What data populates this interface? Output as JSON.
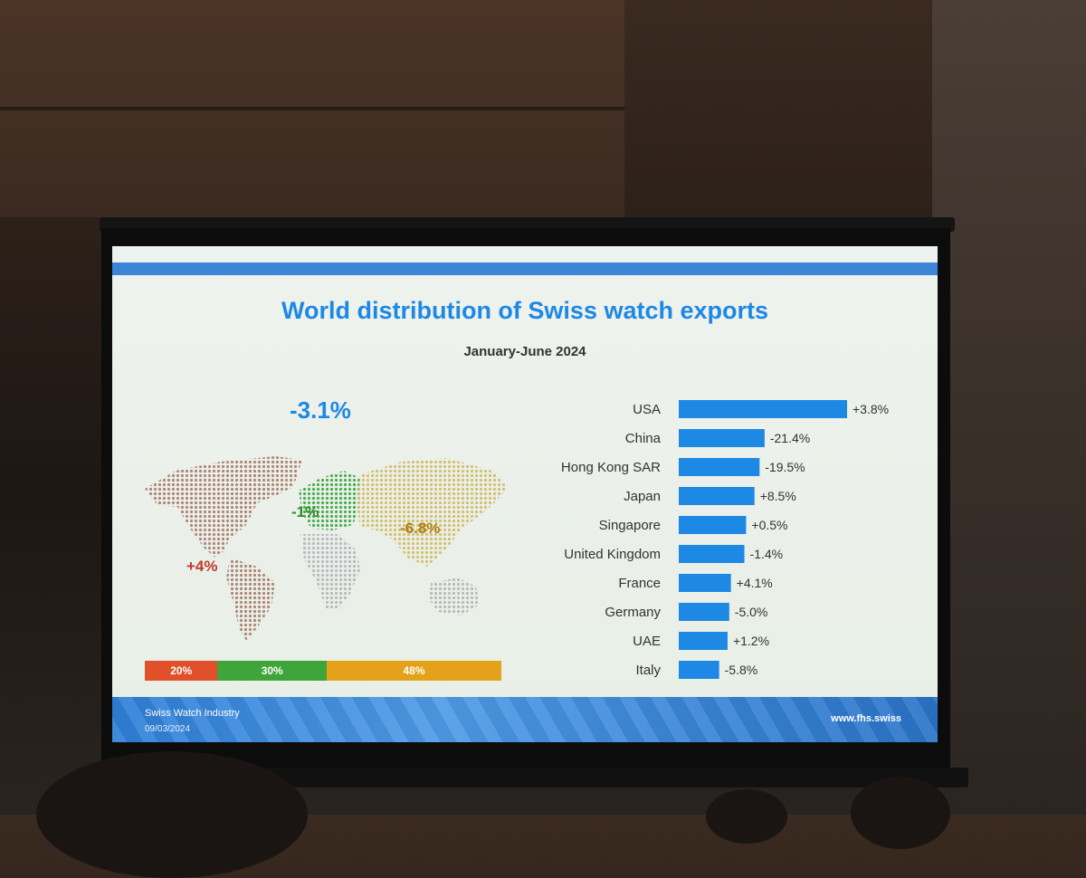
{
  "slide": {
    "title": "World distribution of Swiss watch exports",
    "subtitle": "January-June 2024",
    "world_change": "-3.1%",
    "regions": [
      {
        "name": "America",
        "change": "+4%",
        "color": "#c0392b"
      },
      {
        "name": "Europe",
        "change": "-1%",
        "color": "#2e8b2e"
      },
      {
        "name": "Asia",
        "change": "-6.8%",
        "color": "#b07d10"
      }
    ],
    "shares": [
      {
        "label": "20%",
        "value": 20,
        "color": "#e0502a"
      },
      {
        "label": "30%",
        "value": 30,
        "color": "#3fa43a"
      },
      {
        "label": "48%",
        "value": 48,
        "color": "#e3a21a"
      }
    ],
    "footer": {
      "org": "Swiss Watch Industry",
      "date": "09/03/2024",
      "url": "www.fhs.swiss"
    }
  },
  "chart_data": {
    "type": "bar",
    "orientation": "horizontal",
    "categories": [
      "USA",
      "China",
      "Hong Kong SAR",
      "Japan",
      "Singapore",
      "United Kingdom",
      "France",
      "Germany",
      "UAE",
      "Italy"
    ],
    "values": [
      100,
      51,
      48,
      45,
      40,
      39,
      31,
      30,
      29,
      24
    ],
    "data_labels": [
      "+3.8%",
      "-21.4%",
      "-19.5%",
      "+8.5%",
      "+0.5%",
      "-1.4%",
      "+4.1%",
      "-5.0%",
      "+1.2%",
      "-5.8%"
    ],
    "xlim": [
      0,
      100
    ],
    "grid": false,
    "legend": "none",
    "bar_color": "#1e88e5"
  }
}
